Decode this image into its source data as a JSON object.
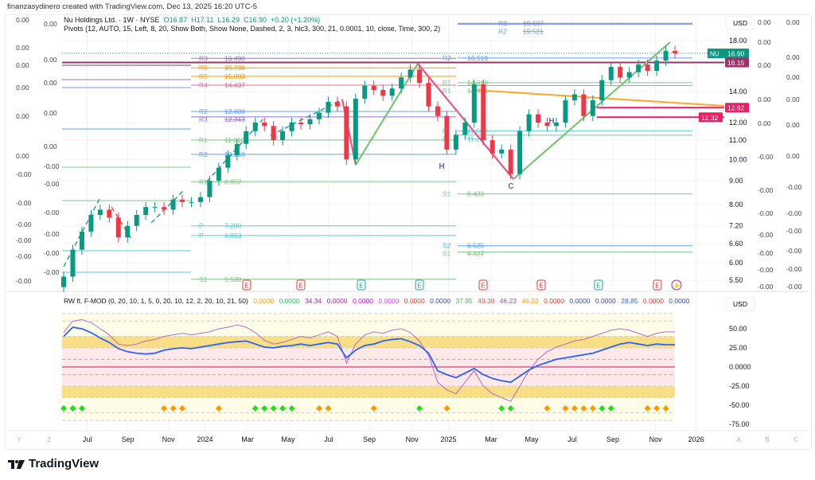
{
  "credit": "finanzasydinero created with TradingView.com, Dec 13, 2025 16:20 UTC-5",
  "symbol": {
    "name": "Nu Holdings Ltd. · 1W · NYSE",
    "open": "O16.87",
    "high": "H17.11",
    "low": "L16.29",
    "close": "C16.90",
    "change": "+0.20 (+1.20%)"
  },
  "pivots_legend": "Pivots (12, AUTO, 15, Left, 8, 20, Show Both, Show None, Dashed, 2, 3, hlc3, 300, 21, 0.0001, 10, close, Time, 300, 2)",
  "oscillator_legend": {
    "title": "RW ft. F-MOD (0, 20, 10, 1, 5, 0, 20, 10, 12, 2, 20, 10, 21, 50)",
    "values": [
      {
        "v": "0.0000",
        "c": "#f5a300"
      },
      {
        "v": "0.0000",
        "c": "#22c55e"
      },
      {
        "v": "34.34",
        "c": "#9c27b0"
      },
      {
        "v": "0.0000",
        "c": "#9c27b0"
      },
      {
        "v": "0.0000",
        "c": "#d500f9"
      },
      {
        "v": "0.0000",
        "c": "#e040fb"
      },
      {
        "v": "0.0000",
        "c": "#e53935"
      },
      {
        "v": "0.0000",
        "c": "#3949ab"
      },
      {
        "v": "37.95",
        "c": "#4caf50"
      },
      {
        "v": "49.38",
        "c": "#ef5350"
      },
      {
        "v": "46.23",
        "c": "#ab47bc"
      },
      {
        "v": "46.02",
        "c": "#ff9800"
      },
      {
        "v": "0.0000",
        "c": "#e53935"
      },
      {
        "v": "0.0000",
        "c": "#3949ab"
      },
      {
        "v": "0.0000",
        "c": "#3949ab"
      },
      {
        "v": "28.85",
        "c": "#2962ff"
      },
      {
        "v": "0.0000",
        "c": "#e53935"
      },
      {
        "v": "0.0000",
        "c": "#3949ab"
      }
    ]
  },
  "currency": "USD",
  "osc_currency": "USD",
  "price_badges": [
    {
      "label": "NU",
      "value": "16.90",
      "color": "#089981"
    },
    {
      "value": "16.15",
      "color": "#a0306a"
    },
    {
      "value": "12.92",
      "color": "#e91e63"
    },
    {
      "value": "12.32",
      "color": "#e91e63"
    }
  ],
  "left_scale_1": [
    "0.00",
    "0.00",
    "0.00",
    "0.00",
    "0.00",
    "0.00",
    "-0.00",
    "-0.00",
    "-0.00",
    "-0.00",
    "-0.00",
    "-0.00"
  ],
  "left_scale_2": [
    "0.00",
    "0.00",
    "0.00",
    "0.00",
    "0.00",
    "-0.00",
    "-0.00",
    "-0.00",
    "-0.00",
    "-0.00",
    "-0.00"
  ],
  "right_scale_1": [
    "0.00",
    "0.00",
    "0.00",
    "0.00",
    "0.00",
    "-0.00",
    "-0.00",
    "-0.00",
    "-0.00",
    "-0.00",
    "-0.00",
    "-0.00"
  ],
  "right_scale_2": [
    "0.00",
    "0.00",
    "0.00",
    "0.00",
    "0.00",
    "0.00",
    "-0.00",
    "-0.00",
    "-0.00",
    "-0.00",
    "-0.00",
    "-0.00"
  ],
  "time_axis_letters": [
    "Y",
    "Z",
    "A",
    "B",
    "C"
  ],
  "brand": "TradingView",
  "chart_data": [
    {
      "type": "candlestick",
      "title": "Nu Holdings Ltd. 1W NYSE",
      "scale": "log",
      "ylim": [
        5.5,
        18.0
      ],
      "y_ticks": [
        "18.00",
        "14.00",
        "12.00",
        "11.00",
        "10.00",
        "9.00",
        "8.00",
        "7.20",
        "6.60",
        "6.00",
        "5.50"
      ],
      "y_tick_values": [
        18,
        14,
        12,
        11,
        10,
        9,
        8,
        7.2,
        6.6,
        6,
        5.5
      ],
      "x_ticks": [
        "Jul",
        "Sep",
        "Nov",
        "2024",
        "Mar",
        "May",
        "Jul",
        "Sep",
        "Nov",
        "2025",
        "Mar",
        "May",
        "Jul",
        "Sep",
        "Nov",
        "2026"
      ],
      "x_tick_months": [
        1.2,
        3.2,
        5.2,
        7.0,
        9.1,
        11.1,
        13.1,
        15.1,
        17.2,
        19.0,
        21.1,
        23.1,
        25.1,
        27.1,
        29.2,
        31.2
      ],
      "start": "2023-05-27",
      "interval_weeks": 2,
      "closes": [
        5.6,
        6.4,
        7.0,
        7.6,
        7.8,
        7.5,
        6.8,
        7.2,
        7.6,
        7.9,
        7.9,
        7.8,
        8.2,
        8.1,
        8.1,
        8.3,
        9.0,
        9.6,
        10.2,
        10.8,
        11.5,
        12.0,
        11.8,
        11.0,
        11.5,
        12.0,
        11.9,
        12.2,
        12.6,
        13.3,
        13.0,
        10.0,
        13.5,
        14.4,
        14.1,
        13.7,
        14.2,
        15.0,
        15.6,
        14.6,
        13.0,
        12.4,
        10.5,
        11.3,
        12.0,
        14.5,
        11.0,
        10.3,
        10.5,
        9.3,
        11.5,
        12.5,
        12.0,
        11.8,
        12.0,
        13.4,
        13.8,
        12.4,
        13.4,
        14.8,
        15.8,
        15.0,
        15.4,
        16.0,
        15.5,
        16.3,
        17.1,
        16.9
      ],
      "pivot_levels_2024": [
        {
          "label": "R3",
          "value": "16.490",
          "v": 16.49,
          "color": "#9575cd"
        },
        {
          "label": "R6",
          "value": "15.730",
          "v": 15.73,
          "color": "#ff9800"
        },
        {
          "label": "R5",
          "value": "15.083",
          "v": 15.083,
          "color": "#ff9800"
        },
        {
          "label": "R4",
          "value": "14.437",
          "v": 14.437,
          "color": "#e57399"
        },
        {
          "label": "R2",
          "value": "12.680",
          "v": 12.68,
          "color": "#64a0f0"
        },
        {
          "label": "R3",
          "value": "12.343",
          "v": 12.343,
          "color": "#9575cd"
        },
        {
          "label": "R1",
          "value": "11.010",
          "v": 11.01,
          "color": "#81c784"
        },
        {
          "label": "R2",
          "value": "10.258",
          "v": 10.258,
          "color": "#64a0f0"
        },
        {
          "label": "R1",
          "value": "8.957",
          "v": 8.957,
          "color": "#81c784"
        },
        {
          "label": "P",
          "value": "7.200",
          "v": 7.2,
          "color": "#4dd0e1"
        },
        {
          "label": "P",
          "value": "6.863",
          "v": 6.863,
          "color": "#4dd0e1"
        },
        {
          "label": "S1",
          "value": "5.530",
          "v": 5.53,
          "color": "#81c784"
        }
      ],
      "pivot_levels_2025": [
        {
          "label": "R3",
          "value": "19.607",
          "v": 19.607,
          "color": "#9575cd"
        },
        {
          "label": "R2",
          "value": "19.521",
          "v": 19.521,
          "color": "#64a0f0"
        },
        {
          "label": "R2",
          "value": "16.518",
          "v": 16.518,
          "color": "#64a0f0"
        },
        {
          "label": "R1",
          "value": "14.619",
          "v": 14.619,
          "color": "#81c784"
        },
        {
          "label": "R1",
          "value": "14.412",
          "v": 14.412,
          "color": "#81c784"
        },
        {
          "label": "P",
          "value": "11.523",
          "v": 11.523,
          "color": "#4dd0e1"
        },
        {
          "label": "P",
          "value": "11.280",
          "v": 11.28,
          "color": "#4dd0e1"
        },
        {
          "label": "S1",
          "value": "8.433",
          "v": 8.433,
          "color": "#81c784"
        },
        {
          "label": "S2",
          "value": "6.525",
          "v": 6.525,
          "color": "#64a0f0"
        },
        {
          "label": "S1",
          "value": "6.327",
          "v": 6.327,
          "color": "#81c784"
        }
      ],
      "horizontal_levels": [
        {
          "value": 16.15,
          "color": "#a0306a"
        },
        {
          "value": 12.92,
          "color": "#e91e63"
        },
        {
          "value": 12.32,
          "color": "#e91e63"
        }
      ],
      "pattern_labels": [
        "H",
        "C",
        "H"
      ],
      "events": [
        {
          "type": "earnings",
          "label": "E",
          "color": "#e53935"
        },
        {
          "type": "earnings",
          "label": "E",
          "color": "#e53935"
        },
        {
          "type": "earnings",
          "label": "E",
          "color": "#26a69a"
        },
        {
          "type": "earnings",
          "label": "E",
          "color": "#26a69a"
        },
        {
          "type": "earnings",
          "label": "E",
          "color": "#e53935"
        },
        {
          "type": "earnings",
          "label": "E",
          "color": "#e53935"
        },
        {
          "type": "earnings",
          "label": "E",
          "color": "#26a69a"
        },
        {
          "type": "earnings",
          "label": "E",
          "color": "#e53935"
        },
        {
          "type": "split",
          "label": "⚡",
          "color": "#9c27b0"
        }
      ]
    },
    {
      "type": "line",
      "title": "RW ft. F-MOD",
      "ylim": [
        -75,
        75
      ],
      "y_ticks": [
        "50.00",
        "25.00",
        "0.0000",
        "-25.00",
        "-50.00",
        "-75.00"
      ],
      "y_tick_values": [
        50,
        25,
        0,
        -25,
        -50,
        -75
      ],
      "series": [
        {
          "name": "blue",
          "color": "#2962ff",
          "values": [
            40,
            52,
            50,
            45,
            38,
            32,
            24,
            20,
            18,
            17,
            18,
            22,
            24,
            25,
            24,
            26,
            28,
            30,
            32,
            33,
            34,
            30,
            26,
            25,
            27,
            28,
            30,
            28,
            30,
            32,
            30,
            12,
            22,
            28,
            30,
            34,
            36,
            37,
            33,
            28,
            18,
            -5,
            -10,
            -14,
            -8,
            -2,
            -10,
            -15,
            -18,
            -20,
            -12,
            -4,
            2,
            6,
            10,
            12,
            14,
            16,
            18,
            22,
            26,
            30,
            32,
            30,
            28,
            30,
            29,
            29
          ]
        },
        {
          "name": "purple",
          "color": "#9c27b0",
          "values": [
            45,
            60,
            62,
            58,
            50,
            42,
            30,
            28,
            30,
            34,
            36,
            40,
            42,
            44,
            42,
            44,
            46,
            50,
            52,
            55,
            52,
            45,
            35,
            30,
            32,
            36,
            40,
            38,
            42,
            46,
            40,
            5,
            30,
            42,
            46,
            44,
            48,
            50,
            45,
            34,
            15,
            -20,
            -30,
            -35,
            -20,
            -5,
            -25,
            -35,
            -40,
            -45,
            -25,
            -5,
            10,
            20,
            26,
            30,
            34,
            36,
            40,
            44,
            48,
            50,
            48,
            44,
            40,
            44,
            46,
            46
          ]
        }
      ],
      "signals_green_idx": [
        0,
        1,
        2,
        21,
        22,
        23,
        24,
        25,
        39,
        48,
        49,
        59,
        60
      ],
      "signals_orange_idx": [
        11,
        12,
        13,
        17,
        28,
        29,
        34,
        42,
        53,
        55,
        56,
        57,
        58,
        64,
        65,
        66
      ]
    }
  ]
}
